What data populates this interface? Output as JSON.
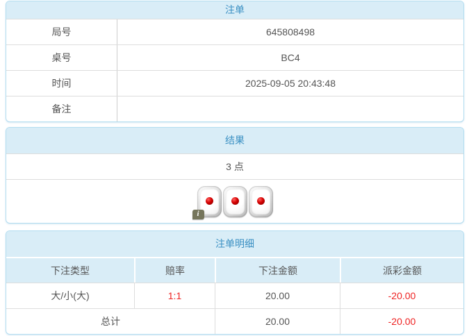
{
  "colors": {
    "header_bg": "#d9edf7",
    "title_blue": "#3a90c3",
    "panel_border": "#b3ddf0",
    "row_divider": "#dddddd",
    "column_divider": "#cccccc",
    "text": "#555555",
    "negative_red": "#ee2222",
    "info_badge_olive": "#76765c"
  },
  "bet_table": {
    "title": "注单",
    "rows": [
      {
        "label": "局号",
        "value": "645808498"
      },
      {
        "label": "桌号",
        "value": "BC4"
      },
      {
        "label": "时间",
        "value": "2025-09-05 20:43:48"
      },
      {
        "label": "备注",
        "value": ""
      }
    ]
  },
  "result_table": {
    "title": "结果",
    "points": "3 点",
    "dice": [
      1,
      1,
      1
    ],
    "info_icon_label": "i"
  },
  "detail_table": {
    "title": "注单明细",
    "columns": [
      "下注类型",
      "赔率",
      "下注金额",
      "派彩金额"
    ],
    "rows": [
      {
        "bet_type": "大/小(大)",
        "odds": "1:1",
        "bet_amount": "20.00",
        "payout": "-20.00"
      }
    ],
    "total": {
      "label": "总计",
      "bet_amount": "20.00",
      "payout": "-20.00"
    }
  }
}
